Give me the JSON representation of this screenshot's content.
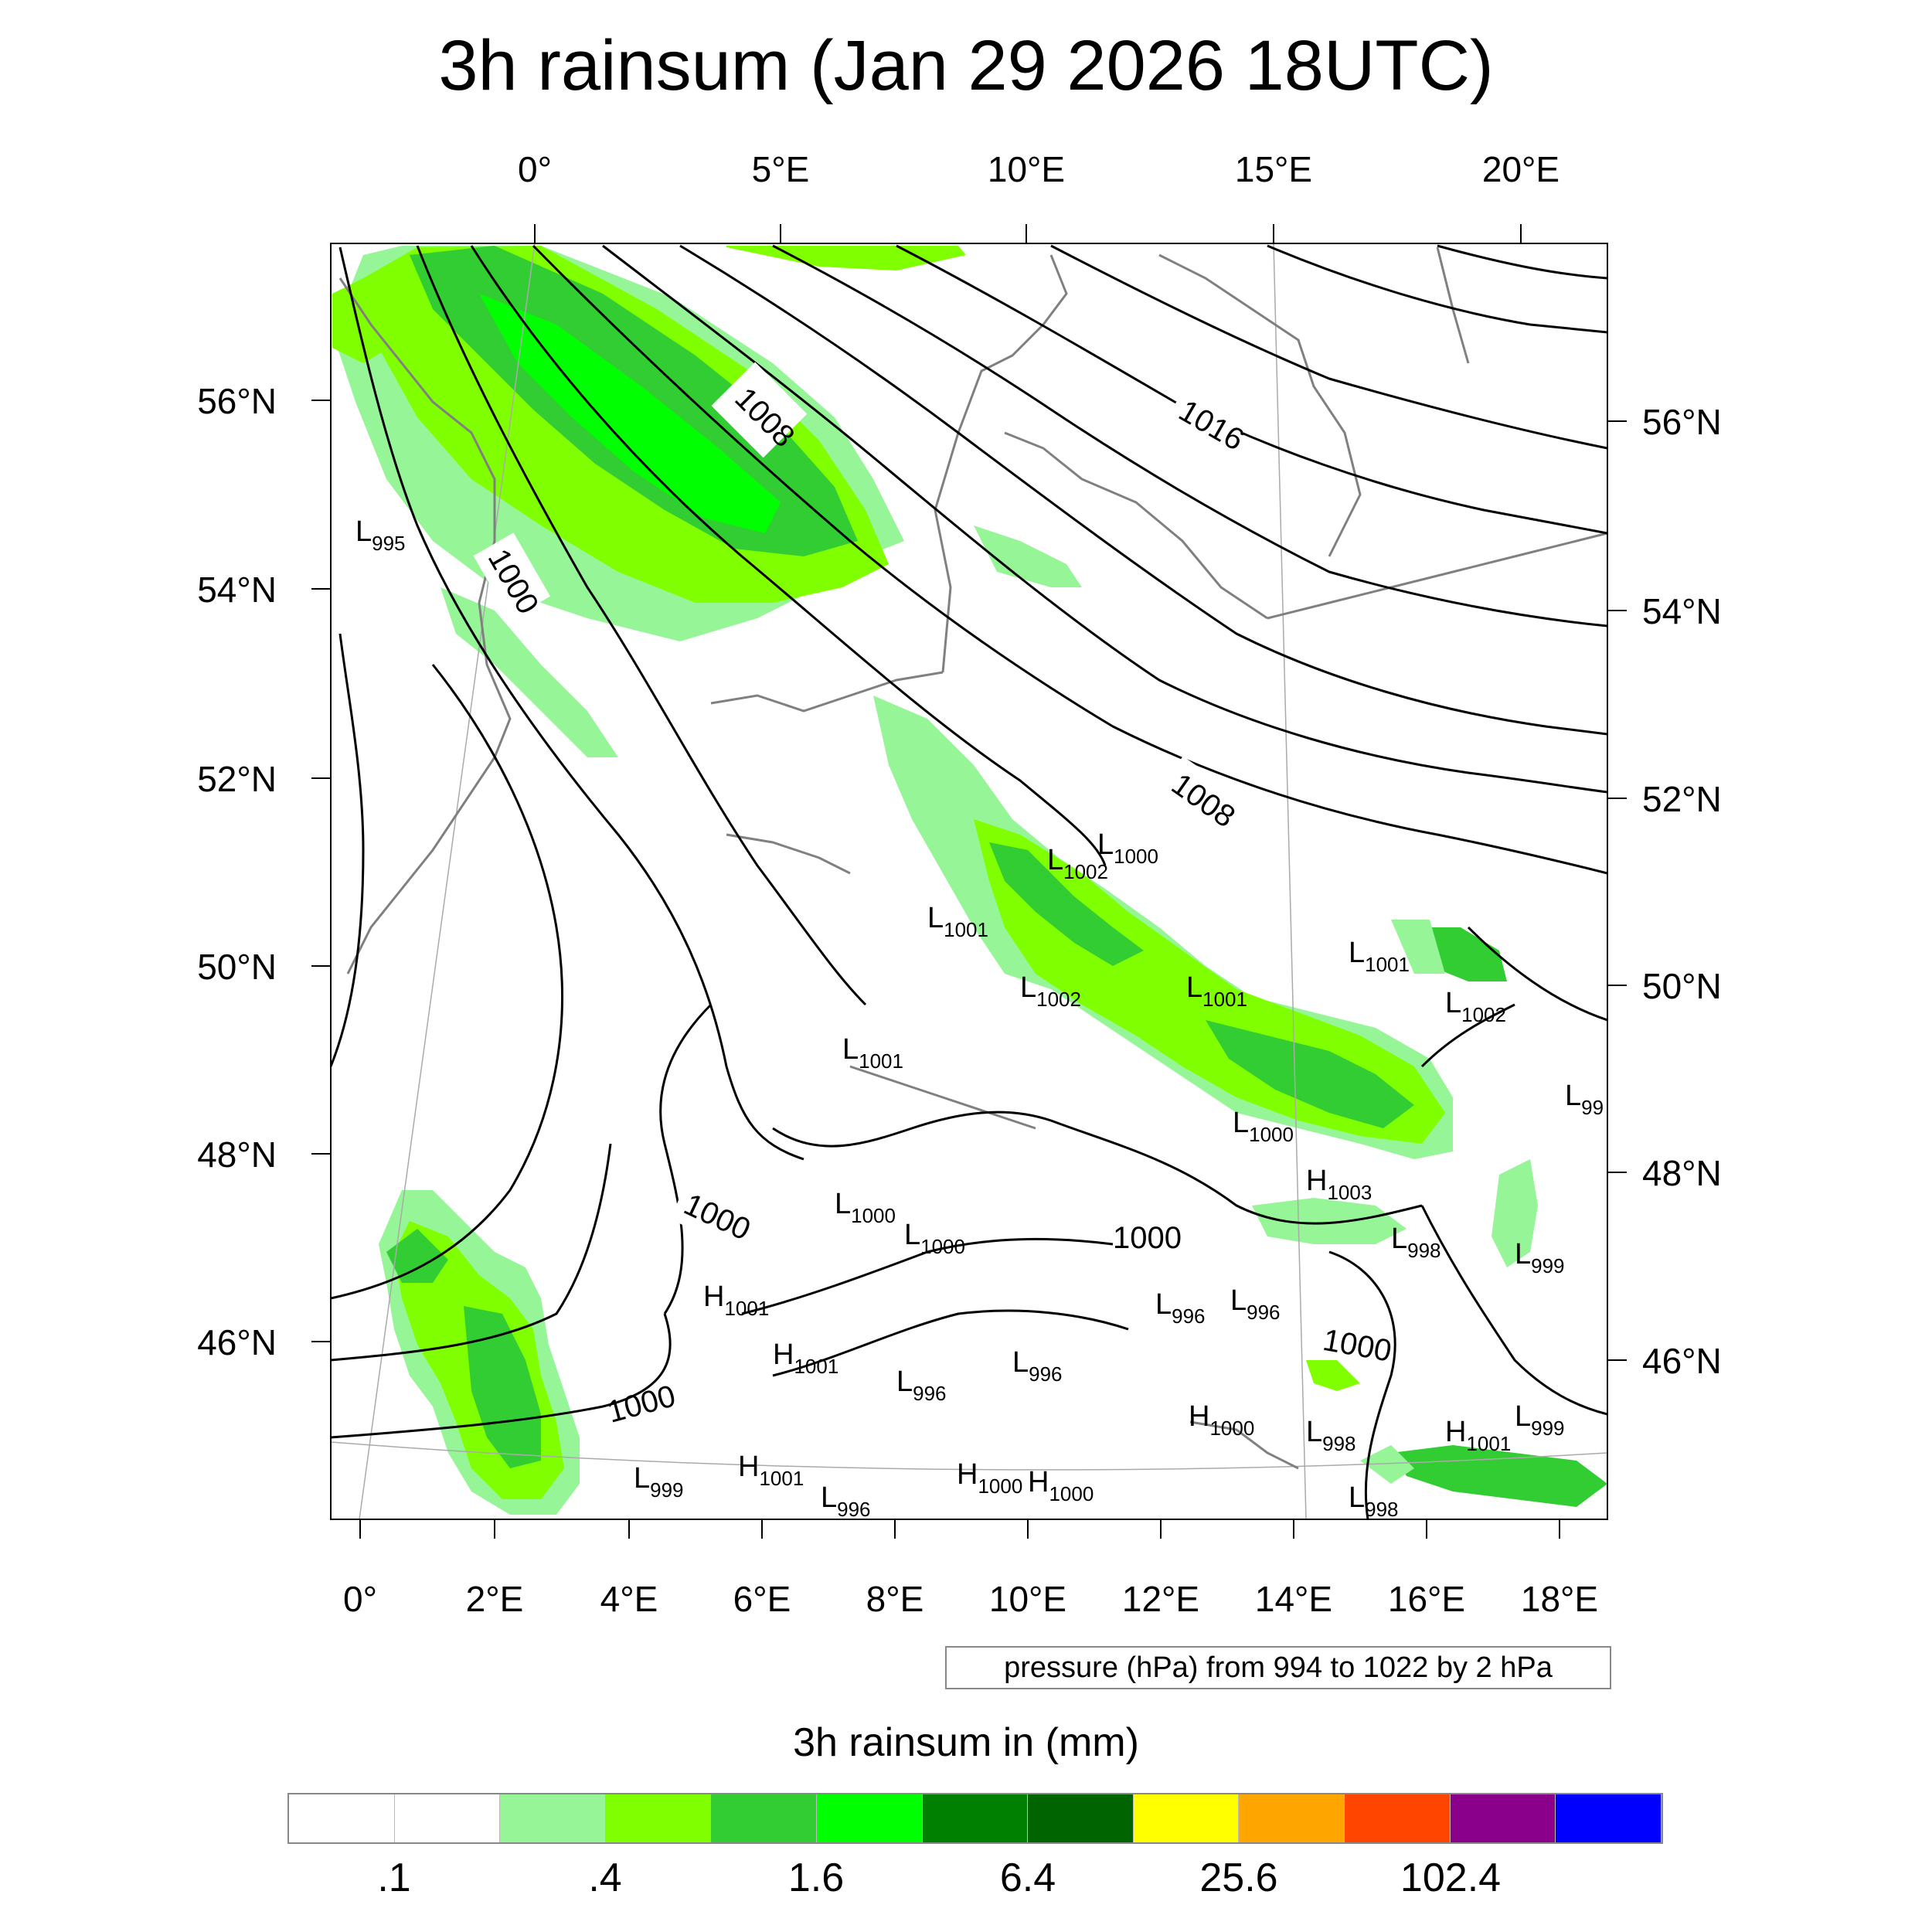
{
  "title": "3h rainsum (Jan 29 2026 18UTC)",
  "info_box": "pressure (hPa) from 994 to 1022 by 2 hPa",
  "top_lon_labels": [
    "0°",
    "5°E",
    "10°E",
    "15°E",
    "20°E"
  ],
  "bottom_lon_labels": [
    "0°",
    "2°E",
    "4°E",
    "6°E",
    "8°E",
    "10°E",
    "12°E",
    "14°E",
    "16°E",
    "18°E"
  ],
  "left_lat_labels": [
    "56°N",
    "54°N",
    "52°N",
    "50°N",
    "48°N",
    "46°N"
  ],
  "right_lat_labels": [
    "56°N",
    "54°N",
    "52°N",
    "50°N",
    "48°N",
    "46°N"
  ],
  "contour_labels": [
    "1008",
    "1016",
    "1000",
    "1008",
    "1000",
    "1000",
    "1000",
    "1000"
  ],
  "pressure_centers": [
    {
      "type": "L",
      "value": "995"
    },
    {
      "type": "L",
      "value": "1002"
    },
    {
      "type": "L",
      "value": "1001"
    },
    {
      "type": "L",
      "value": "1001"
    },
    {
      "type": "L",
      "value": "1002"
    },
    {
      "type": "L",
      "value": "1001"
    },
    {
      "type": "L",
      "value": "1000"
    },
    {
      "type": "L",
      "value": "1001"
    },
    {
      "type": "L",
      "value": "1002"
    },
    {
      "type": "L",
      "value": "1000"
    },
    {
      "type": "H",
      "value": "1003"
    },
    {
      "type": "L",
      "value": "1000"
    },
    {
      "type": "L",
      "value": "1000"
    },
    {
      "type": "L",
      "value": "998"
    },
    {
      "type": "L",
      "value": "999"
    },
    {
      "type": "H",
      "value": "1001"
    },
    {
      "type": "L",
      "value": "996"
    },
    {
      "type": "L",
      "value": "996"
    },
    {
      "type": "H",
      "value": "1001"
    },
    {
      "type": "L",
      "value": "996"
    },
    {
      "type": "L",
      "value": "996"
    },
    {
      "type": "H",
      "value": "1000"
    },
    {
      "type": "L",
      "value": "998"
    },
    {
      "type": "H",
      "value": "1001"
    },
    {
      "type": "L",
      "value": "999"
    },
    {
      "type": "L",
      "value": "999"
    },
    {
      "type": "H",
      "value": "1001"
    },
    {
      "type": "L",
      "value": "996"
    },
    {
      "type": "H",
      "value": "1000"
    },
    {
      "type": "H",
      "value": "1000"
    },
    {
      "type": "L",
      "value": "998"
    },
    {
      "type": "L",
      "value": "99"
    }
  ],
  "colorbar": {
    "title": "3h rainsum in (mm)",
    "colors": [
      "#ffffff",
      "#ffffff",
      "#96f596",
      "#80ff00",
      "#32cd32",
      "#00ff00",
      "#008000",
      "#006400",
      "#ffff00",
      "#ffa500",
      "#ff4500",
      "#8b008b",
      "#0000ff"
    ],
    "labels": [
      ".1",
      ".4",
      "1.6",
      "6.4",
      "25.6",
      "102.4"
    ]
  },
  "rain_colors": {
    "light": "#96f596",
    "medium": "#80ff00",
    "heavy": "#32cd32",
    "bright": "#00ff00",
    "dark": "#008000"
  }
}
